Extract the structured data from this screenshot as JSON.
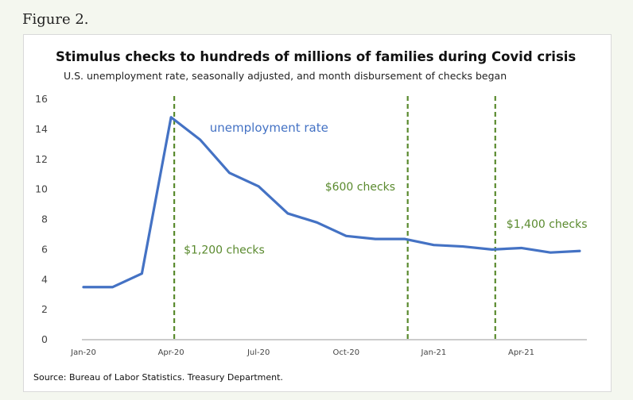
{
  "figure_label": "Figure 2.",
  "source": "Source: Bureau of Labor Statistics. Treasury Department.",
  "colors": {
    "line": "#4472c4",
    "annotation": "#5a8a2e",
    "axis": "#999999"
  },
  "chart_data": {
    "type": "line",
    "title": "Stimulus checks to hundreds of millions of families during Covid crisis",
    "subtitle": "U.S. unemployment rate, seasonally adjusted, and month disbursement of checks began",
    "xlabel": "",
    "ylabel": "",
    "ylim": [
      0,
      16
    ],
    "yticks": [
      0,
      2,
      4,
      6,
      8,
      10,
      12,
      14,
      16
    ],
    "grid": false,
    "x": [
      "Jan-20",
      "Feb-20",
      "Mar-20",
      "Apr-20",
      "May-20",
      "Jun-20",
      "Jul-20",
      "Aug-20",
      "Sep-20",
      "Oct-20",
      "Nov-20",
      "Dec-20",
      "Jan-21",
      "Feb-21",
      "Mar-21",
      "Apr-21",
      "May-21",
      "Jun-21"
    ],
    "xtick_labels": [
      {
        "x": "Jan-20",
        "label": "Jan-20"
      },
      {
        "x": "Apr-20",
        "label": "Apr-20"
      },
      {
        "x": "Jul-20",
        "label": "Jul-20"
      },
      {
        "x": "Oct-20",
        "label": "Oct-20"
      },
      {
        "x": "Jan-21",
        "label": "Jan-21"
      },
      {
        "x": "Apr-21",
        "label": "Apr-21"
      }
    ],
    "series": [
      {
        "name": "unemployment rate",
        "values": [
          3.5,
          3.5,
          4.4,
          14.8,
          13.3,
          11.1,
          10.2,
          8.4,
          7.8,
          6.9,
          6.7,
          6.7,
          6.3,
          6.2,
          6.0,
          6.1,
          5.8,
          5.9
        ]
      }
    ],
    "annotations": [
      {
        "x": "Apr-20",
        "label": "$1,200 checks"
      },
      {
        "x": "Dec-20",
        "label": "$600 checks"
      },
      {
        "x": "Mar-21",
        "label": "$1,400 checks"
      }
    ]
  }
}
